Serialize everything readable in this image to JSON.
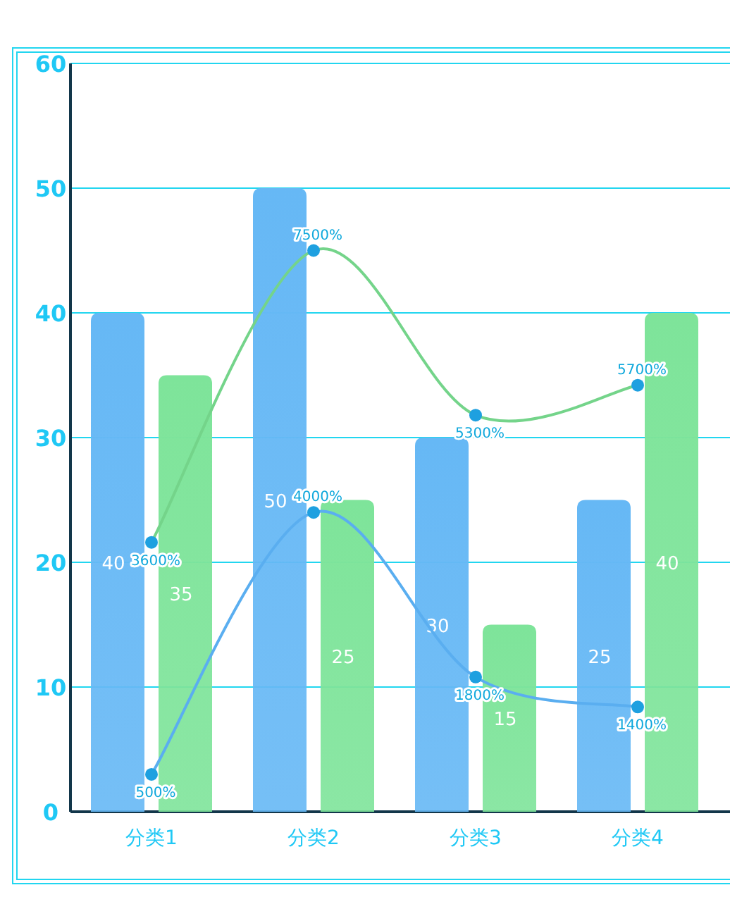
{
  "chart_data": {
    "type": "bar",
    "categories": [
      "分类1",
      "分类2",
      "分类3",
      "分类4"
    ],
    "series": [
      {
        "color": "#66b8f5",
        "values": [
          40,
          50,
          30,
          25
        ],
        "value_labels": [
          "40",
          "50",
          "30",
          "25"
        ]
      },
      {
        "color": "#7ee49a",
        "values": [
          35,
          25,
          15,
          40
        ],
        "value_labels": [
          "35",
          "25",
          "15",
          "40"
        ]
      },
      {
        "type": "line",
        "axis": "y2",
        "color": "#5aaef0",
        "values": [
          500,
          4000,
          1800,
          1400
        ],
        "value_labels": [
          "500%",
          "4000%",
          "1800%",
          "1400%"
        ]
      },
      {
        "type": "line",
        "axis": "y2",
        "color": "#74d48a",
        "values": [
          3600,
          7500,
          5300,
          5700
        ],
        "value_labels": [
          "3600%",
          "7500%",
          "5300%",
          "5700%"
        ]
      }
    ],
    "ylim": [
      0,
      60
    ],
    "yticks": [
      0,
      10,
      20,
      30,
      40,
      50,
      60
    ],
    "y2lim": [
      0,
      10000
    ],
    "grid": "y",
    "marker": "circle"
  }
}
